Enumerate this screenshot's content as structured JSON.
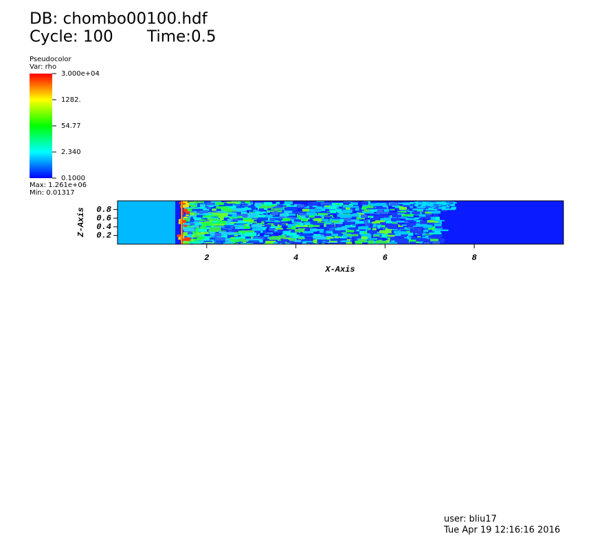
{
  "chart_data": {
    "type": "pseudocolor",
    "title": "DB: chombo00100.hdf",
    "cycle": "Cycle: 100",
    "time": "Time:0.5",
    "legend_title": "Pseudocolor",
    "variable": "Var: rho",
    "color_scale": "log",
    "clim": [
      0.1,
      30000
    ],
    "cticks": [
      {
        "value": 30000,
        "label": "3.000e+04"
      },
      {
        "value": 1282,
        "label": "1282."
      },
      54.77,
      {
        "value": 2.34,
        "label": "2.340"
      },
      {
        "value": 0.1,
        "label": "0.1000"
      }
    ],
    "max_label": "Max:  1.261e+06",
    "min_label": "Min:  0.01317",
    "xlabel": "X-Axis",
    "ylabel": "Z-Axis",
    "xlim": [
      0,
      10
    ],
    "ylim": [
      0,
      1
    ],
    "xticks": [
      2,
      4,
      6,
      8
    ],
    "yticks": [
      0.2,
      0.4,
      0.6,
      0.8
    ],
    "user": "user: bliu17",
    "date": "Tue Apr 19 12:16:16 2016"
  }
}
